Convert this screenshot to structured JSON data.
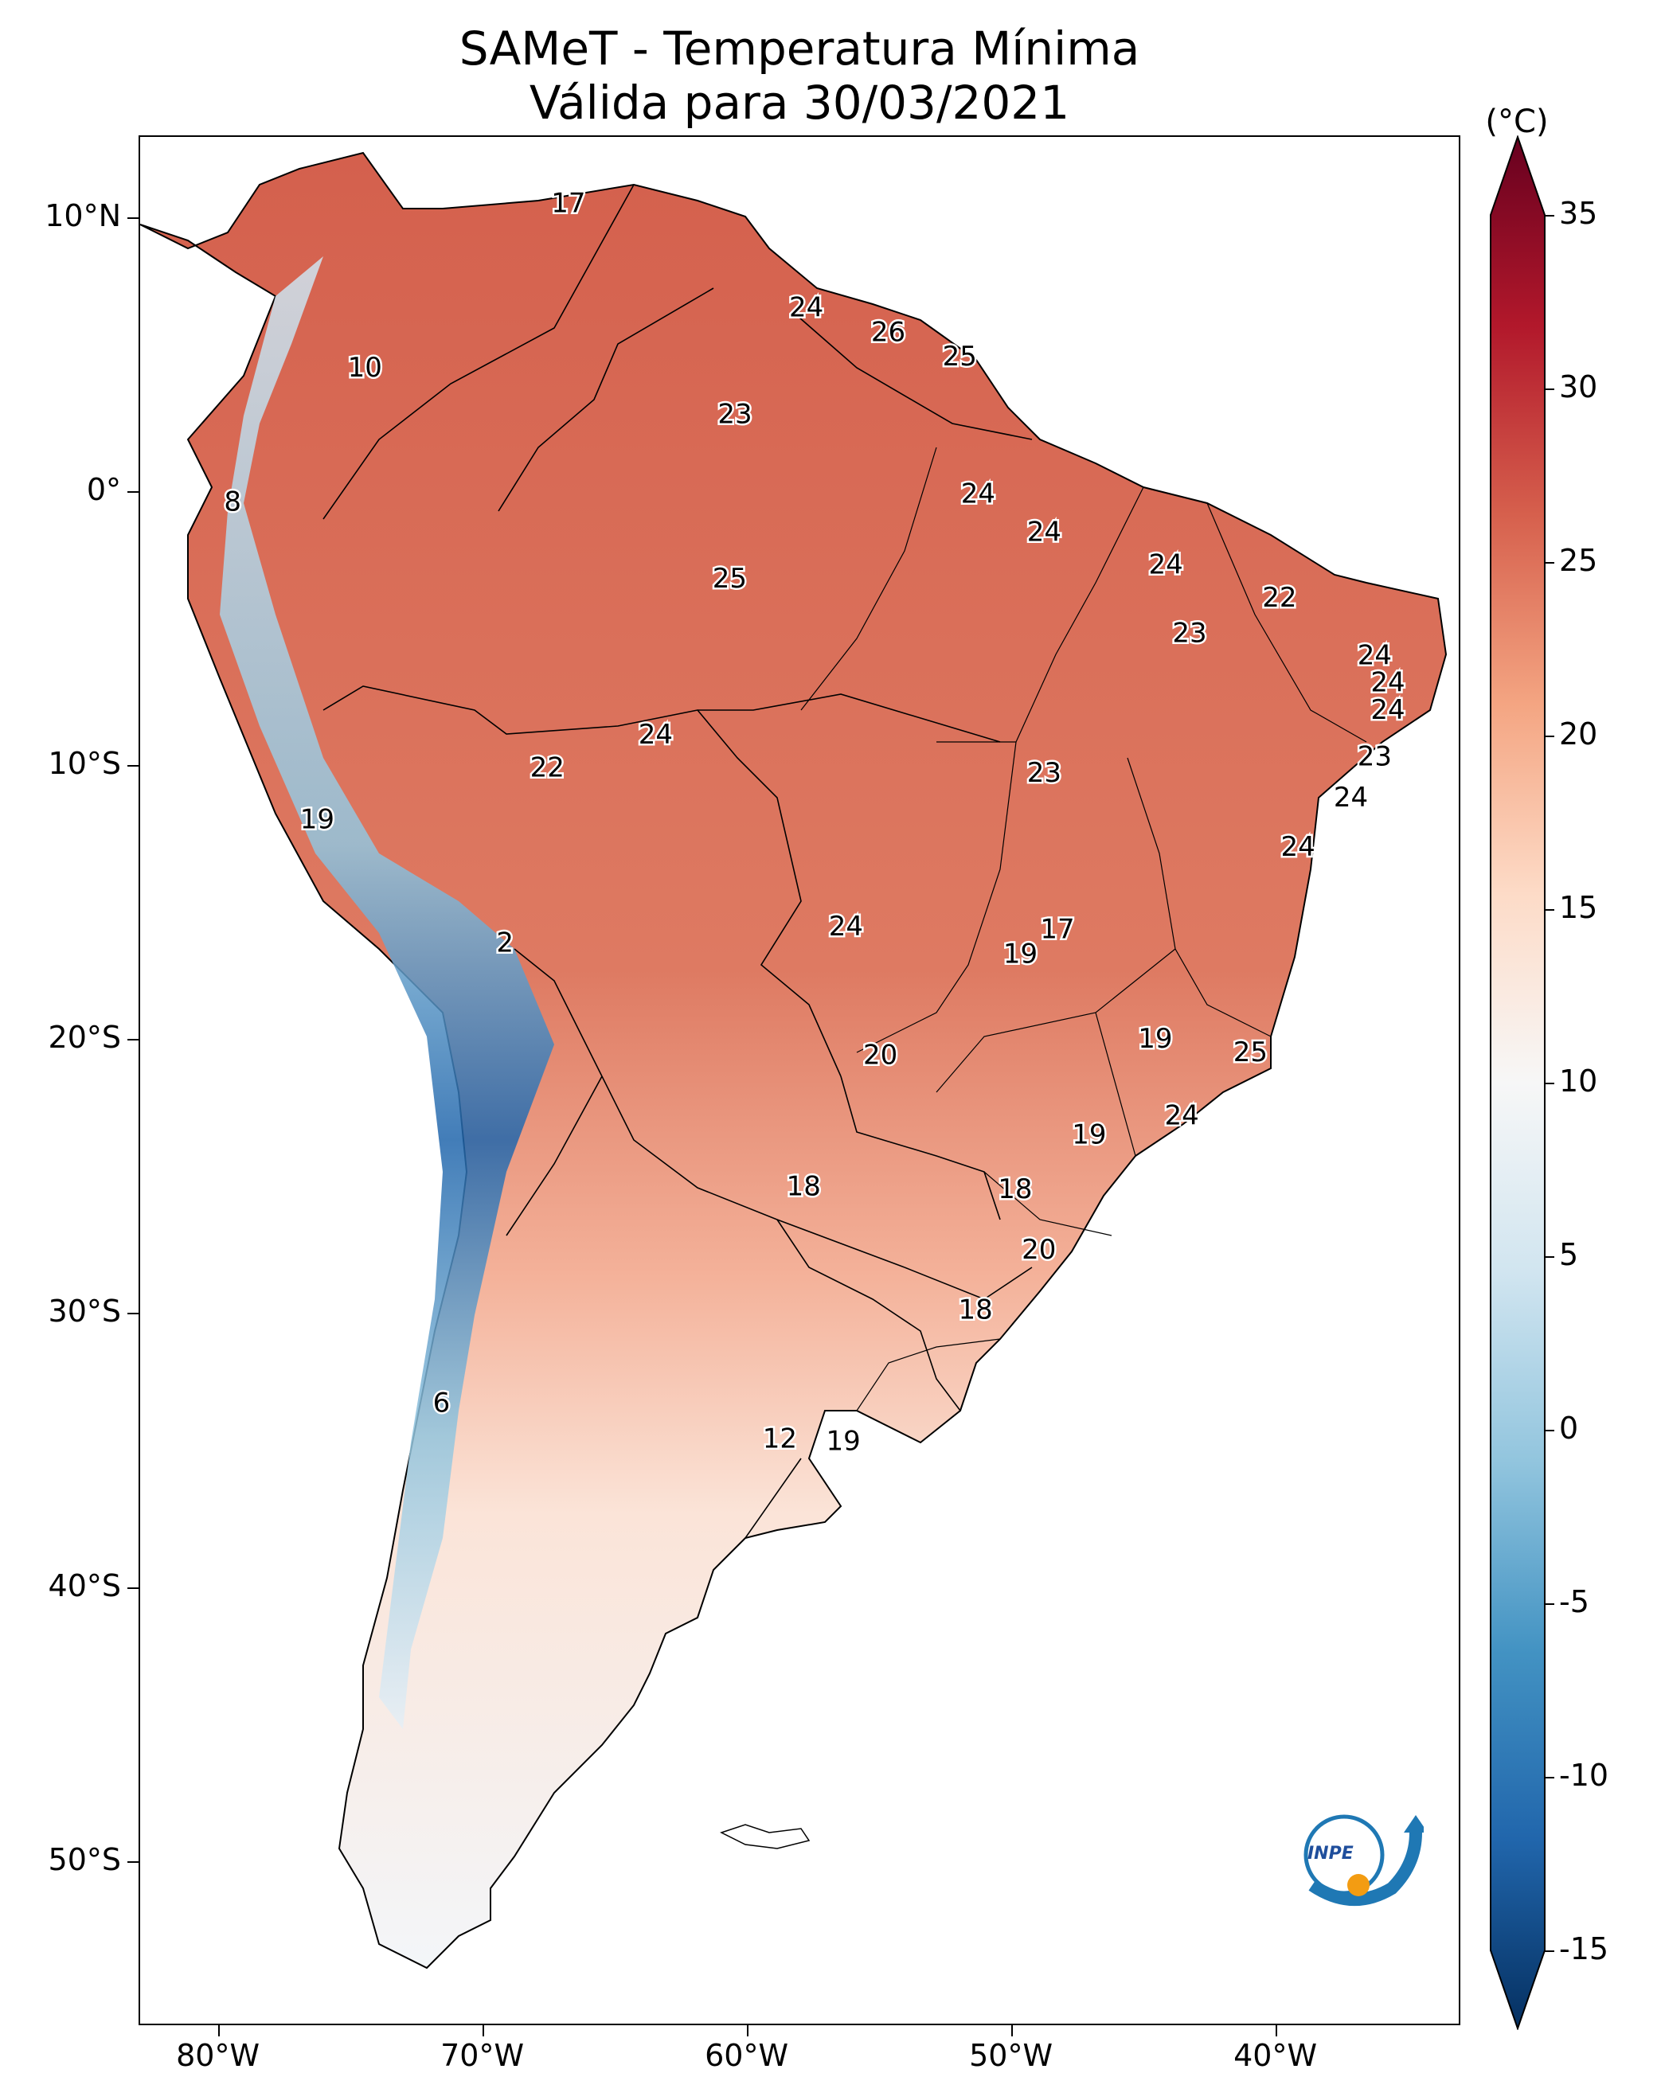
{
  "title_line1": "SAMeT - Temperatura Mínima",
  "title_line2": "Válida para 30/03/2021",
  "colorbar": {
    "unit": "(°C)",
    "min": -15,
    "max": 35,
    "ticks": [
      "35",
      "30",
      "25",
      "20",
      "15",
      "10",
      "5",
      "0",
      "-5",
      "-10",
      "-15"
    ],
    "tick_values": [
      35,
      30,
      25,
      20,
      15,
      10,
      5,
      0,
      -5,
      -10,
      -15
    ],
    "colors": [
      "#053061",
      "#2166ac",
      "#4393c3",
      "#92c5de",
      "#d1e5f0",
      "#f7f7f7",
      "#fddbc7",
      "#f4a582",
      "#d6604d",
      "#b2182b",
      "#67001f"
    ]
  },
  "axes": {
    "lat_labels": [
      "10°N",
      "0°",
      "10°S",
      "20°S",
      "30°S",
      "40°S",
      "50°S"
    ],
    "lat_values": [
      10,
      0,
      -10,
      -20,
      -30,
      -40,
      -50
    ],
    "lon_labels": [
      "80°W",
      "70°W",
      "60°W",
      "50°W",
      "40°W"
    ],
    "lon_values": [
      -80,
      -70,
      -60,
      -50,
      -40
    ],
    "lon_range": [
      -83,
      -33
    ],
    "lat_range": [
      -56,
      13
    ]
  },
  "temperature_labels": [
    {
      "text": "17",
      "lon": -66.8,
      "lat": 10.6
    },
    {
      "text": "24",
      "lon": -57.8,
      "lat": 6.8
    },
    {
      "text": "26",
      "lon": -54.7,
      "lat": 5.9
    },
    {
      "text": "25",
      "lon": -52.0,
      "lat": 5.0
    },
    {
      "text": "10",
      "lon": -74.5,
      "lat": 4.6
    },
    {
      "text": "23",
      "lon": -60.5,
      "lat": 2.9
    },
    {
      "text": "8",
      "lon": -79.5,
      "lat": -0.3
    },
    {
      "text": "24",
      "lon": -51.3,
      "lat": 0.0
    },
    {
      "text": "24",
      "lon": -48.8,
      "lat": -1.4
    },
    {
      "text": "24",
      "lon": -44.2,
      "lat": -2.6
    },
    {
      "text": "25",
      "lon": -60.7,
      "lat": -3.1
    },
    {
      "text": "22",
      "lon": -39.9,
      "lat": -3.8
    },
    {
      "text": "23",
      "lon": -43.3,
      "lat": -5.1
    },
    {
      "text": "24",
      "lon": -36.3,
      "lat": -5.9
    },
    {
      "text": "24",
      "lon": -35.8,
      "lat": -6.9
    },
    {
      "text": "24",
      "lon": -35.8,
      "lat": -7.9
    },
    {
      "text": "24",
      "lon": -63.5,
      "lat": -8.8
    },
    {
      "text": "23",
      "lon": -36.3,
      "lat": -9.6
    },
    {
      "text": "22",
      "lon": -67.6,
      "lat": -10.0
    },
    {
      "text": "23",
      "lon": -48.8,
      "lat": -10.2
    },
    {
      "text": "24",
      "lon": -37.2,
      "lat": -11.1
    },
    {
      "text": "19",
      "lon": -76.3,
      "lat": -11.9
    },
    {
      "text": "24",
      "lon": -39.2,
      "lat": -12.9
    },
    {
      "text": "24",
      "lon": -56.3,
      "lat": -15.8
    },
    {
      "text": "17",
      "lon": -48.3,
      "lat": -15.9
    },
    {
      "text": "2",
      "lon": -69.2,
      "lat": -16.4
    },
    {
      "text": "19",
      "lon": -49.7,
      "lat": -16.8
    },
    {
      "text": "19",
      "lon": -44.6,
      "lat": -19.9
    },
    {
      "text": "25",
      "lon": -41.0,
      "lat": -20.4
    },
    {
      "text": "20",
      "lon": -55.0,
      "lat": -20.5
    },
    {
      "text": "24",
      "lon": -43.6,
      "lat": -22.7
    },
    {
      "text": "19",
      "lon": -47.1,
      "lat": -23.4
    },
    {
      "text": "18",
      "lon": -57.9,
      "lat": -25.3
    },
    {
      "text": "18",
      "lon": -49.9,
      "lat": -25.4
    },
    {
      "text": "20",
      "lon": -49.0,
      "lat": -27.6
    },
    {
      "text": "18",
      "lon": -51.4,
      "lat": -29.8
    },
    {
      "text": "6",
      "lon": -71.6,
      "lat": -33.2
    },
    {
      "text": "12",
      "lon": -58.8,
      "lat": -34.5
    },
    {
      "text": "19",
      "lon": -56.4,
      "lat": -34.6
    }
  ],
  "logo_text": "INPE"
}
